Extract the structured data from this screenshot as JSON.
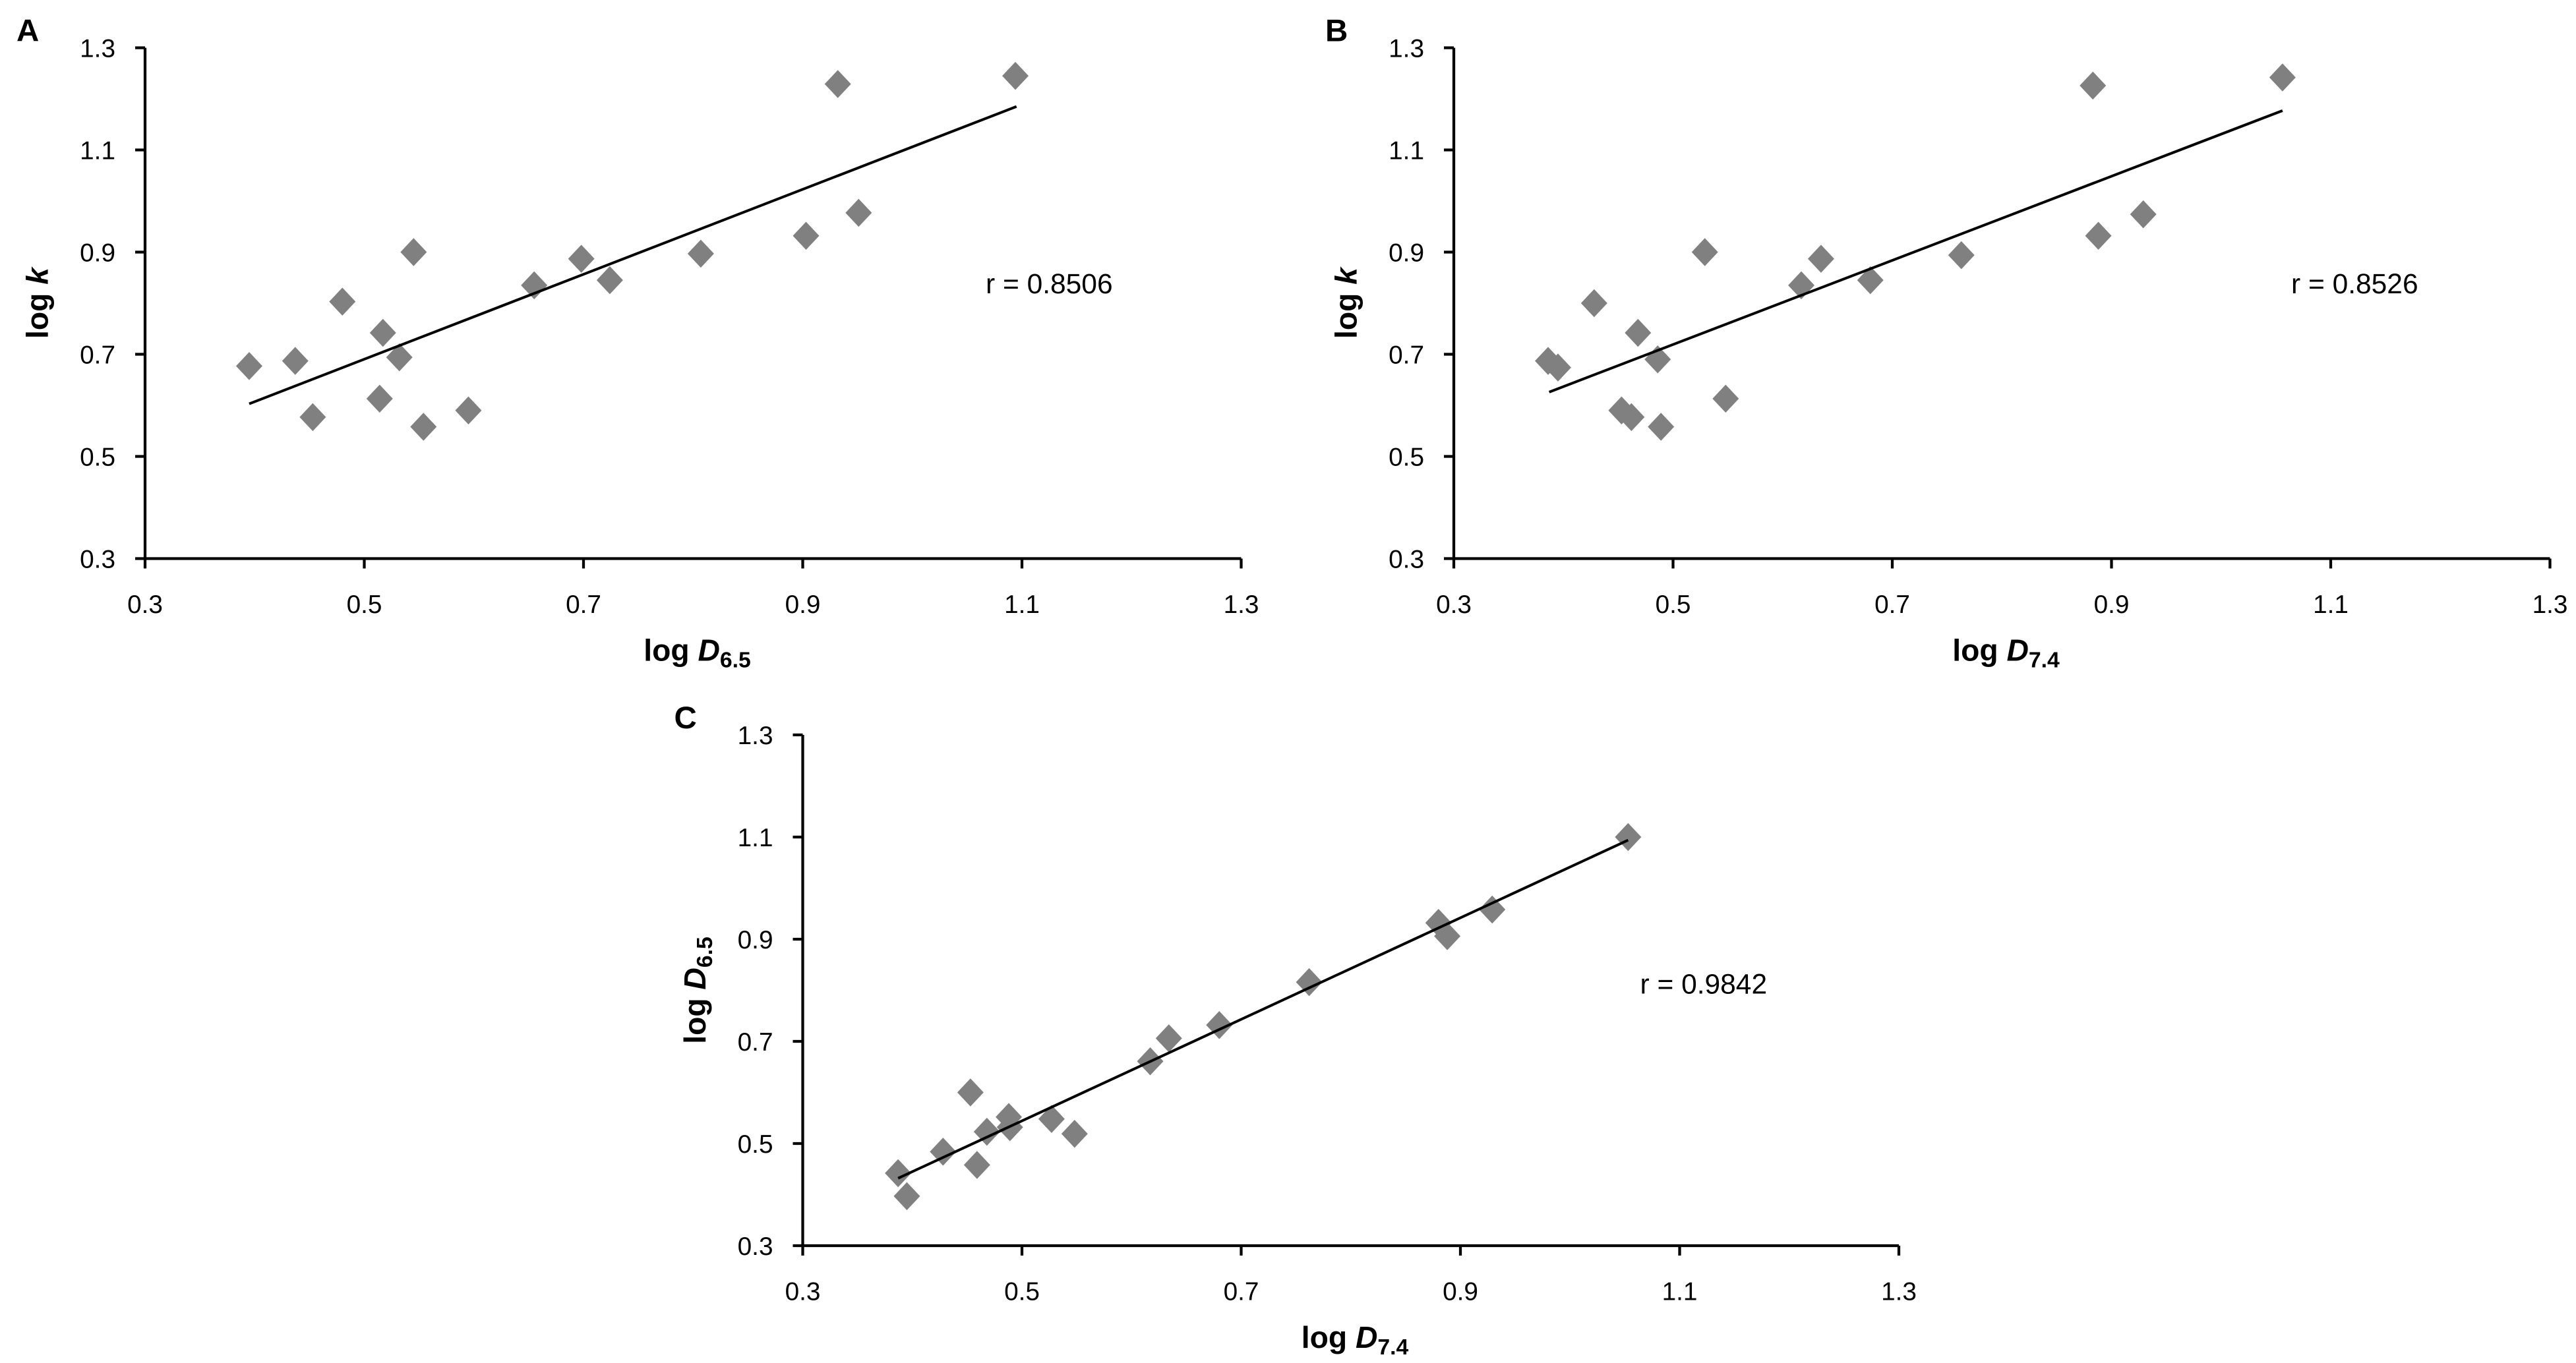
{
  "chart_data": [
    {
      "panel": "A",
      "type": "scatter",
      "xlabel": {
        "text": "log ",
        "italic": "D",
        "subscript": "6.5"
      },
      "ylabel": {
        "text": "log ",
        "italic": "k"
      },
      "xlim": [
        0.3,
        1.3
      ],
      "ylim": [
        0.3,
        1.3
      ],
      "xticks": [
        0.3,
        0.5,
        0.7,
        0.9,
        1.1,
        1.3
      ],
      "yticks": [
        0.3,
        0.5,
        0.7,
        0.9,
        1.1,
        1.3
      ],
      "grid": false,
      "x": [
        0.395,
        0.437,
        0.453,
        0.48,
        0.517,
        0.514,
        0.532,
        0.545,
        0.554,
        0.595,
        0.655,
        0.698,
        0.724,
        0.807,
        0.903,
        0.932,
        0.951,
        1.094
      ],
      "y": [
        0.677,
        0.687,
        0.577,
        0.803,
        0.742,
        0.613,
        0.694,
        0.9,
        0.558,
        0.59,
        0.835,
        0.887,
        0.845,
        0.897,
        0.932,
        1.229,
        0.977,
        1.245
      ],
      "trendline": [
        [
          0.395,
          0.603
        ],
        [
          1.095,
          1.185
        ]
      ],
      "annotation": "r = 0.8506",
      "marker_color": "#808080",
      "line_color": "#000000"
    },
    {
      "panel": "B",
      "type": "scatter",
      "xlabel": {
        "text": "log ",
        "italic": "D",
        "subscript": "7.4"
      },
      "ylabel": {
        "text": "log ",
        "italic": "k"
      },
      "xlim": [
        0.3,
        1.3
      ],
      "ylim": [
        0.3,
        1.3
      ],
      "xticks": [
        0.3,
        0.5,
        0.7,
        0.9,
        1.1,
        1.3
      ],
      "yticks": [
        0.3,
        0.5,
        0.7,
        0.9,
        1.1,
        1.3
      ],
      "grid": false,
      "x": [
        0.386,
        0.395,
        0.428,
        0.453,
        0.462,
        0.468,
        0.486,
        0.489,
        0.529,
        0.548,
        0.617,
        0.635,
        0.68,
        0.763,
        0.883,
        0.888,
        0.929,
        1.056
      ],
      "y": [
        0.687,
        0.674,
        0.8,
        0.59,
        0.577,
        0.742,
        0.69,
        0.558,
        0.9,
        0.613,
        0.835,
        0.887,
        0.845,
        0.894,
        1.226,
        0.932,
        0.974,
        1.242
      ],
      "trendline": [
        [
          0.387,
          0.626
        ],
        [
          1.056,
          1.177
        ]
      ],
      "annotation": "r = 0.8526",
      "marker_color": "#808080",
      "line_color": "#000000"
    },
    {
      "panel": "C",
      "type": "scatter",
      "xlabel": {
        "text": "log ",
        "italic": "D",
        "subscript": "7.4"
      },
      "ylabel": {
        "text": "log ",
        "italic": "D",
        "subscript": "6.5"
      },
      "xlim": [
        0.3,
        1.3
      ],
      "ylim": [
        0.3,
        1.3
      ],
      "xticks": [
        0.3,
        0.5,
        0.7,
        0.9,
        1.1,
        1.3
      ],
      "yticks": [
        0.3,
        0.5,
        0.7,
        0.9,
        1.1,
        1.3
      ],
      "grid": false,
      "x": [
        0.387,
        0.395,
        0.428,
        0.453,
        0.459,
        0.468,
        0.488,
        0.489,
        0.527,
        0.548,
        0.617,
        0.634,
        0.68,
        0.762,
        0.88,
        0.888,
        0.929,
        1.053
      ],
      "y": [
        0.442,
        0.397,
        0.484,
        0.6,
        0.458,
        0.523,
        0.552,
        0.532,
        0.548,
        0.519,
        0.661,
        0.706,
        0.732,
        0.816,
        0.932,
        0.906,
        0.958,
        1.1
      ],
      "trendline": [
        [
          0.387,
          0.432
        ],
        [
          1.053,
          1.094
        ]
      ],
      "annotation": "r = 0.9842",
      "marker_color": "#808080",
      "line_color": "#000000"
    }
  ]
}
